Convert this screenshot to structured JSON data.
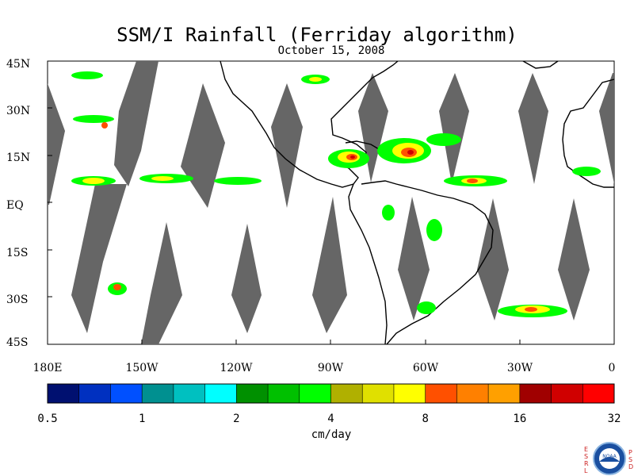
{
  "title": "SSM/I Rainfall (Ferriday algorithm)",
  "date": "October 15, 2008",
  "lat_labels": [
    "45N",
    "30N",
    "15N",
    "EQ",
    "15S",
    "30S",
    "45S"
  ],
  "lon_labels": [
    "180E",
    "150W",
    "120W",
    "90W",
    "60W",
    "30W",
    "0"
  ],
  "colorbar": {
    "unit": "cm/day",
    "tick_labels": [
      "0.5",
      "1",
      "2",
      "4",
      "8",
      "16",
      "32"
    ],
    "colors": [
      "#001070",
      "#0030c0",
      "#0050ff",
      "#009090",
      "#00c0c0",
      "#00ffff",
      "#009000",
      "#00c000",
      "#00ff00",
      "#b0b000",
      "#e0e000",
      "#ffff00",
      "#ff5000",
      "#ff8000",
      "#ffa000",
      "#a00000",
      "#d00000",
      "#ff0000"
    ]
  },
  "logo": {
    "left_letters": "ESRL",
    "right_letters": "PSD",
    "center_text": "NOAA"
  }
}
